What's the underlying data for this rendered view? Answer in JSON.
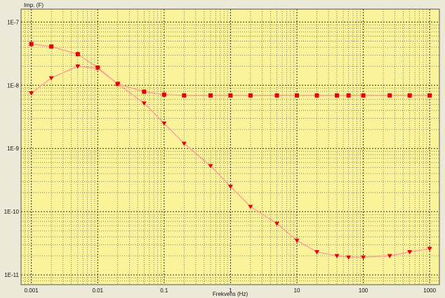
{
  "chart_data": {
    "type": "line",
    "title": "",
    "xlabel": "Frekvens (Hz)",
    "ylabel": "Imp. (F)",
    "x_scale": "log",
    "y_scale": "log",
    "xlim": [
      0.0007,
      1400
    ],
    "ylim": [
      7e-12,
      1.6e-07
    ],
    "x_ticks": [
      {
        "value": 0.001,
        "label": "0.001"
      },
      {
        "value": 0.01,
        "label": "0.01"
      },
      {
        "value": 0.1,
        "label": "0.1"
      },
      {
        "value": 1,
        "label": "1"
      },
      {
        "value": 10,
        "label": "10"
      },
      {
        "value": 100,
        "label": "100"
      },
      {
        "value": 1000,
        "label": "1000"
      }
    ],
    "y_ticks": [
      {
        "value": 1e-07,
        "label": "1E-7"
      },
      {
        "value": 1e-08,
        "label": "1E-8"
      },
      {
        "value": 1e-09,
        "label": "1E-9"
      },
      {
        "value": 1e-10,
        "label": "1E-10"
      },
      {
        "value": 1e-11,
        "label": "1E-11"
      }
    ],
    "grid": true,
    "background_color": "#fbf39a",
    "line_color": "#ff9999",
    "marker_color": "#e60000",
    "series": [
      {
        "marker": "square",
        "x": [
          0.001,
          0.002,
          0.005,
          0.01,
          0.02,
          0.05,
          0.1,
          0.2,
          0.5,
          1,
          2,
          5,
          10,
          20,
          40,
          60,
          100,
          250,
          500,
          1000
        ],
        "y": [
          4.5e-08,
          4.1e-08,
          3.1e-08,
          1.9e-08,
          1.05e-08,
          7.9e-09,
          7.1e-09,
          6.9e-09,
          6.9e-09,
          6.9e-09,
          6.9e-09,
          6.9e-09,
          6.9e-09,
          6.9e-09,
          6.9e-09,
          6.9e-09,
          6.9e-09,
          6.9e-09,
          6.9e-09,
          6.9e-09
        ]
      },
      {
        "marker": "triangle-down",
        "x": [
          0.001,
          0.002,
          0.005,
          0.01,
          0.02,
          0.05,
          0.1,
          0.2,
          0.5,
          1,
          2,
          5,
          10,
          20,
          40,
          60,
          100,
          250,
          500,
          1000
        ],
        "y": [
          7.5e-09,
          1.3e-08,
          2e-08,
          1.85e-08,
          1.05e-08,
          5.2e-09,
          2.5e-09,
          1.2e-09,
          5.3e-10,
          2.5e-10,
          1.2e-10,
          6.5e-11,
          3.5e-11,
          2.3e-11,
          2e-11,
          1.9e-11,
          1.9e-11,
          2e-11,
          2.3e-11,
          2.6e-11
        ]
      }
    ]
  }
}
